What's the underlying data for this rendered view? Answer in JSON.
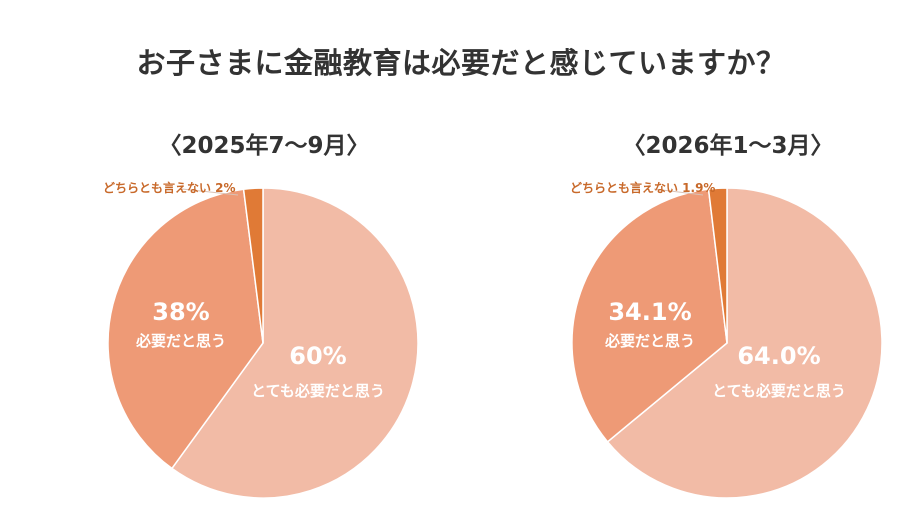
{
  "title": "お子さまに金融教育は必要だと感じていますか？",
  "chart_data": [
    {
      "type": "pie",
      "title": "〈2025年7〜9月〉",
      "slices": [
        {
          "label": "とても必要だと思う",
          "value": 60,
          "value_label": "60%",
          "color": "#f2bba6"
        },
        {
          "label": "必要だと思う",
          "value": 38,
          "value_label": "38%",
          "color": "#ee9a76"
        },
        {
          "label": "どちらとも言えない",
          "value": 2,
          "value_label": "2%",
          "color": "#e07a36"
        }
      ]
    },
    {
      "type": "pie",
      "title": "〈2026年1〜3月〉",
      "slices": [
        {
          "label": "とても必要だと思う",
          "value": 64.0,
          "value_label": "64.0%",
          "color": "#f2bba6"
        },
        {
          "label": "必要だと思う",
          "value": 34.1,
          "value_label": "34.1%",
          "color": "#ee9a76"
        },
        {
          "label": "どちらとも言えない",
          "value": 1.9,
          "value_label": "1.9%",
          "color": "#e07a36"
        }
      ]
    }
  ]
}
